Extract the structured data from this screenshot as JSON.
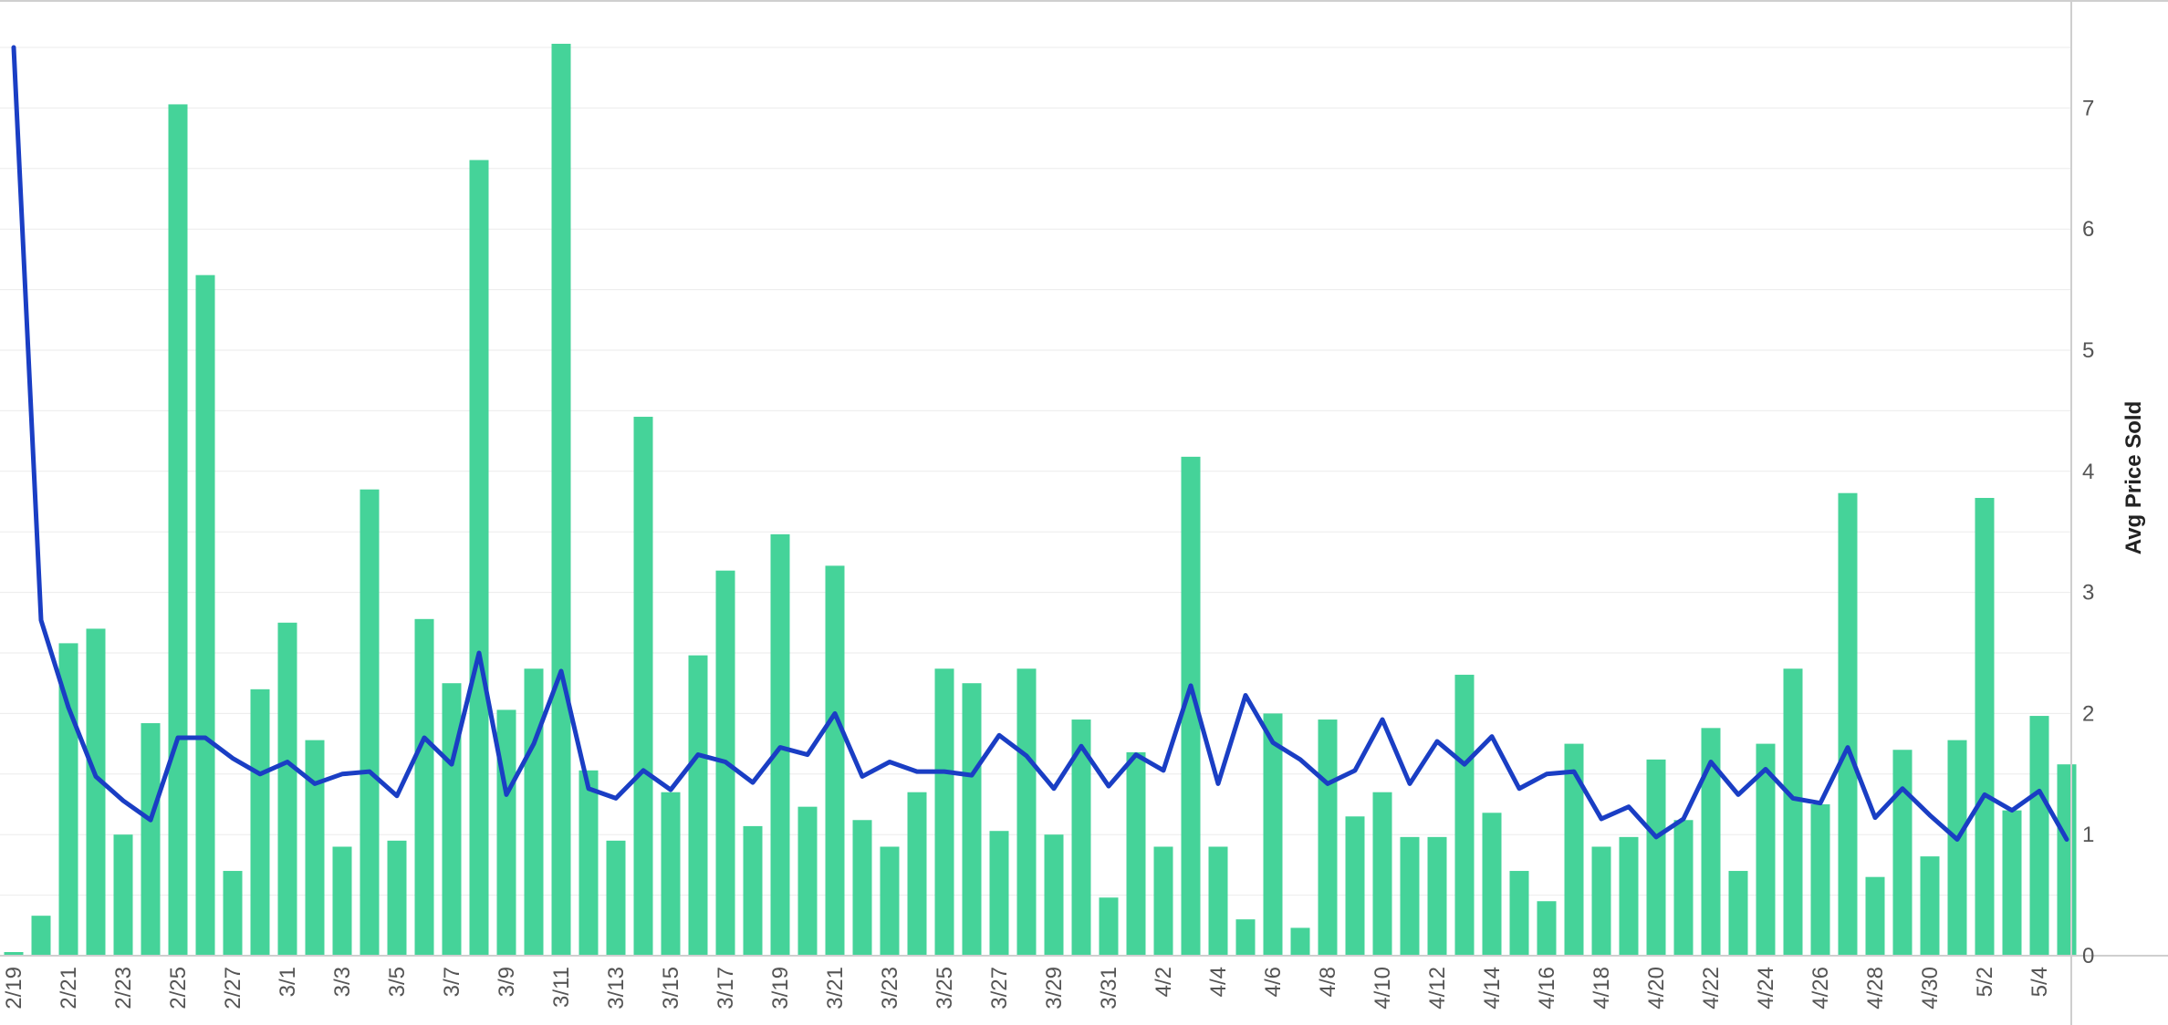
{
  "chart_data": {
    "type": "bar",
    "title": "",
    "xlabel": "",
    "ylabel": "Avg Price Sold",
    "ylim": [
      0,
      7.5
    ],
    "y_ticks": [
      0,
      1,
      2,
      3,
      4,
      5,
      6,
      7
    ],
    "grid": true,
    "colors": {
      "bar": "#45D399",
      "line": "#1A3EC4",
      "grid": "#ebebeb",
      "axis": "#cfcfcf",
      "tick_text": "#555555"
    },
    "x_tick_labels": [
      "2/19",
      "2/21",
      "2/23",
      "2/25",
      "2/27",
      "3/1",
      "3/3",
      "3/5",
      "3/7",
      "3/9",
      "3/11",
      "3/13",
      "3/15",
      "3/17",
      "3/19",
      "3/21",
      "3/23",
      "3/25",
      "3/27",
      "3/29",
      "3/31",
      "4/2",
      "4/4",
      "4/6",
      "4/8",
      "4/10",
      "4/12",
      "4/14",
      "4/16",
      "4/18",
      "4/20",
      "4/22",
      "4/24",
      "4/26",
      "4/28",
      "4/30",
      "5/2",
      "5/4"
    ],
    "categories": [
      "2/19",
      "2/20",
      "2/21",
      "2/22",
      "2/23",
      "2/24",
      "2/25",
      "2/26",
      "2/27",
      "2/28",
      "3/1",
      "3/2",
      "3/3",
      "3/4",
      "3/5",
      "3/6",
      "3/7",
      "3/8",
      "3/9",
      "3/10",
      "3/11",
      "3/12",
      "3/13",
      "3/14",
      "3/15",
      "3/16",
      "3/17",
      "3/18",
      "3/19",
      "3/20",
      "3/21",
      "3/22",
      "3/23",
      "3/24",
      "3/25",
      "3/26",
      "3/27",
      "3/28",
      "3/29",
      "3/30",
      "3/31",
      "4/1",
      "4/2",
      "4/3",
      "4/4",
      "4/5",
      "4/6",
      "4/7",
      "4/8",
      "4/9",
      "4/10",
      "4/11",
      "4/12",
      "4/13",
      "4/14",
      "4/15",
      "4/16",
      "4/17",
      "4/18",
      "4/19",
      "4/20",
      "4/21",
      "4/22",
      "4/23",
      "4/24",
      "4/25",
      "4/26",
      "4/27",
      "4/28",
      "4/29",
      "4/30",
      "5/1",
      "5/2",
      "5/3",
      "5/4",
      "5/5"
    ],
    "series": [
      {
        "type": "bar",
        "values": [
          0.03,
          0.33,
          2.58,
          2.7,
          1.0,
          1.92,
          7.03,
          5.62,
          0.7,
          2.2,
          2.75,
          1.78,
          0.9,
          3.85,
          0.95,
          2.78,
          2.25,
          6.57,
          2.03,
          2.37,
          7.53,
          1.53,
          0.95,
          4.45,
          1.35,
          2.48,
          3.18,
          1.07,
          3.48,
          1.23,
          3.22,
          1.12,
          0.9,
          1.35,
          2.37,
          2.25,
          1.03,
          2.37,
          1.0,
          1.95,
          0.48,
          1.68,
          0.9,
          4.12,
          0.9,
          0.3,
          2.0,
          0.23,
          1.95,
          1.15,
          1.35,
          0.98,
          0.98,
          2.32,
          1.18,
          0.7,
          0.45,
          1.75,
          0.9,
          0.98,
          1.62,
          1.12,
          1.88,
          0.7,
          1.75,
          2.37,
          1.25,
          3.82,
          0.65,
          1.7,
          0.82,
          1.78,
          3.78,
          1.2,
          1.98,
          1.58
        ]
      },
      {
        "type": "line",
        "values": [
          7.5,
          2.77,
          2.05,
          1.48,
          1.28,
          1.12,
          1.8,
          1.8,
          1.63,
          1.5,
          1.6,
          1.42,
          1.5,
          1.52,
          1.32,
          1.8,
          1.58,
          2.5,
          1.33,
          1.75,
          2.35,
          1.38,
          1.3,
          1.53,
          1.37,
          1.66,
          1.6,
          1.43,
          1.72,
          1.66,
          2.0,
          1.48,
          1.6,
          1.52,
          1.52,
          1.49,
          1.82,
          1.65,
          1.38,
          1.73,
          1.4,
          1.66,
          1.53,
          2.23,
          1.42,
          2.15,
          1.76,
          1.62,
          1.42,
          1.53,
          1.95,
          1.42,
          1.77,
          1.58,
          1.81,
          1.38,
          1.5,
          1.52,
          1.13,
          1.23,
          0.98,
          1.13,
          1.6,
          1.33,
          1.54,
          1.3,
          1.26,
          1.72,
          1.14,
          1.38,
          1.16,
          0.96,
          1.33,
          1.2,
          1.36,
          0.96
        ]
      }
    ]
  }
}
